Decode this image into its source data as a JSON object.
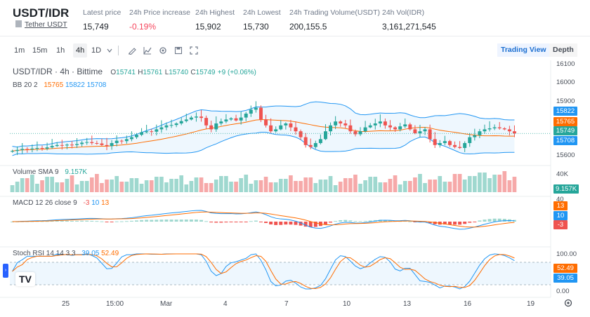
{
  "header": {
    "pair": "USDT/IDR",
    "pair_subtitle": "Tether USDT",
    "stats": [
      {
        "label": "Latest price",
        "value": "15,749",
        "negative": false
      },
      {
        "label": "24h Price increase",
        "value": "-0.19%",
        "negative": true
      },
      {
        "label": "24h Highest",
        "value": "15,902",
        "negative": false
      },
      {
        "label": "24h Lowest",
        "value": "15,730",
        "negative": false
      },
      {
        "label": "24h Trading Volume(USDT)",
        "value": "200,155.5",
        "negative": false
      },
      {
        "label": "24h Vol(IDR)",
        "value": "3,161,271,545",
        "negative": false
      }
    ]
  },
  "toolbar": {
    "timeframes": [
      "1m",
      "15m",
      "1h",
      "4h",
      "1D"
    ],
    "active_timeframe": "4h",
    "tool_icons": [
      "chevron-down-icon",
      "draw-icon",
      "indicator-icon",
      "settings-icon",
      "save-icon",
      "fullscreen-icon"
    ],
    "trading_view_label": "Trading View",
    "depth_label": "Depth"
  },
  "chart": {
    "symbol_line": "USDT/IDR · 4h · Bittime",
    "ohlc": {
      "o_label": "O",
      "o": "15741",
      "h_label": "H",
      "h": "15761",
      "l_label": "L",
      "l": "15740",
      "c_label": "C",
      "c": "15749",
      "change": "+9 (+0.06%)"
    },
    "bb_label": "BB 20 2",
    "bb_values": [
      "15765",
      "15822",
      "15708"
    ],
    "volume_label": "Volume SMA 9",
    "volume_value": "9.157K",
    "macd_label": "MACD 12 26 close 9",
    "macd_values": [
      "-3",
      "10",
      "13"
    ],
    "stoch_label": "Stoch RSI 14 14 3 3",
    "stoch_values": [
      "39.05",
      "52.49"
    ],
    "price_axis": [
      "16100",
      "16000",
      "15900",
      "15600"
    ],
    "price_tags": [
      {
        "text": "15822",
        "color": "#2196f3"
      },
      {
        "text": "15765",
        "color": "#ff6d00"
      },
      {
        "text": "15749",
        "color": "#26a69a"
      },
      {
        "text": "15708",
        "color": "#2196f3"
      }
    ],
    "volume_axis": [
      "40K"
    ],
    "volume_tag": "9.157K",
    "macd_tags": [
      {
        "text": "40",
        "color": null
      },
      {
        "text": "13",
        "color": "#ff6d00"
      },
      {
        "text": "10",
        "color": "#2196f3"
      },
      {
        "text": "-3",
        "color": "#ef5350"
      }
    ],
    "stoch_axis": [
      "100.00",
      "0.00"
    ],
    "stoch_tags": [
      {
        "text": "52.49",
        "color": "#ff6d00"
      },
      {
        "text": "39.05",
        "color": "#2196f3"
      }
    ],
    "x_axis": [
      "25",
      "15:00",
      "Mar",
      "4",
      "7",
      "10",
      "13",
      "16",
      "19"
    ],
    "logo_text": "TV",
    "colors": {
      "up": "#26a69a",
      "down": "#ef5350",
      "bb": "#2196f3",
      "basis": "#ff6d00",
      "macd": "#2196f3",
      "signal": "#ff6d00"
    }
  },
  "chart_data": {
    "type": "candlestick",
    "title": "USDT/IDR · 4h · Bittime",
    "ylim": [
      15600,
      16100
    ],
    "close": [
      15660,
      15665,
      15670,
      15668,
      15672,
      15675,
      15672,
      15678,
      15685,
      15690,
      15688,
      15692,
      15690,
      15695,
      15702,
      15705,
      15700,
      15698,
      15690,
      15685,
      15700,
      15712,
      15710,
      15720,
      15730,
      15742,
      15755,
      15760,
      15758,
      15770,
      15780,
      15790,
      15792,
      15800,
      15812,
      15820,
      15830,
      15835,
      15828,
      15790,
      15770,
      15800,
      15810,
      15820,
      15826,
      15815,
      15830,
      15850,
      15870,
      15880,
      15820,
      15790,
      15760,
      15770,
      15790,
      15800,
      15780,
      15760,
      15730,
      15690,
      15680,
      15700,
      15720,
      15760,
      15790,
      15810,
      15800,
      15790,
      15760,
      15745,
      15760,
      15780,
      15790,
      15800,
      15810,
      15790,
      15780,
      15770,
      15785,
      15795,
      15770,
      15750,
      15760,
      15770,
      15720,
      15690,
      15700,
      15710,
      15690,
      15680,
      15675,
      15700,
      15730,
      15740,
      15760,
      15770,
      15775,
      15780,
      15775,
      15770,
      15760,
      15749
    ]
  }
}
